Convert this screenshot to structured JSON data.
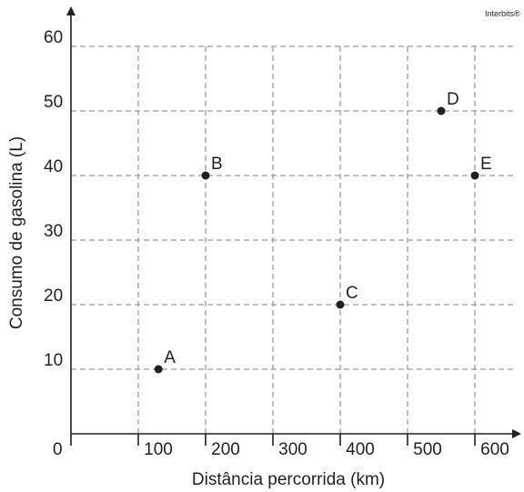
{
  "credit": "Interbits®",
  "chart_data": {
    "type": "scatter",
    "xlabel": "Distância percorrida (km)",
    "ylabel": "Consumo de gasolina (L)",
    "origin_label": "0",
    "xlim": [
      0,
      660
    ],
    "ylim": [
      0,
      60
    ],
    "x_ticks": [
      100,
      200,
      300,
      400,
      500,
      600
    ],
    "x_tick_labels": [
      "100",
      "200",
      "300",
      "400",
      "500",
      "600"
    ],
    "y_ticks": [
      10,
      20,
      30,
      40,
      50,
      60
    ],
    "y_tick_labels": [
      "10",
      "20",
      "30",
      "40",
      "50",
      "60"
    ],
    "grid": true,
    "points": [
      {
        "label": "A",
        "x": 130,
        "y": 10
      },
      {
        "label": "B",
        "x": 200,
        "y": 40
      },
      {
        "label": "C",
        "x": 400,
        "y": 20
      },
      {
        "label": "D",
        "x": 550,
        "y": 50
      },
      {
        "label": "E",
        "x": 600,
        "y": 40
      }
    ]
  }
}
